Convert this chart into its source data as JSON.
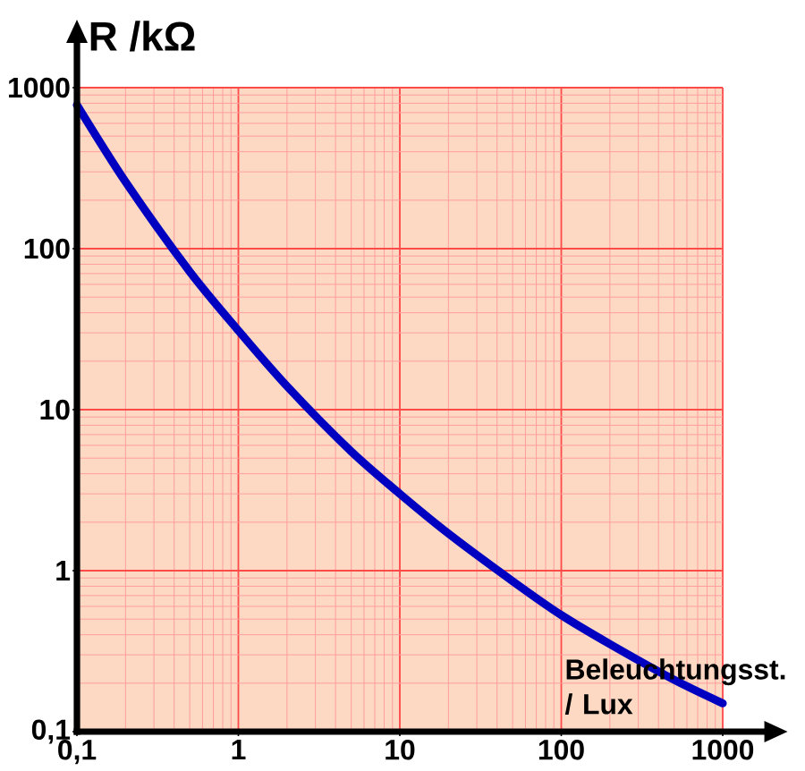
{
  "chart_data": {
    "type": "line",
    "xlabel": "Beleuchtungsst. / Lux",
    "ylabel": "R /kΩ",
    "log": "xy",
    "grid": true,
    "x": [
      0.1,
      0.2,
      0.5,
      1,
      2,
      5,
      10,
      20,
      50,
      100,
      200,
      500,
      1000
    ],
    "series": [
      {
        "color": "#0000c0",
        "values": [
          780,
          260,
          72,
          31,
          14,
          5.5,
          3.0,
          1.7,
          0.86,
          0.53,
          0.35,
          0.21,
          0.15
        ]
      }
    ],
    "xlim": [
      0.1,
      1000
    ],
    "ylim": [
      0.1,
      1000
    ],
    "xticks": [
      {
        "value": 0.1,
        "label": "0,1"
      },
      1,
      10,
      100,
      1000
    ],
    "yticks": [
      {
        "value": 0.1,
        "label": "0,1"
      },
      1,
      10,
      100,
      1000
    ]
  }
}
